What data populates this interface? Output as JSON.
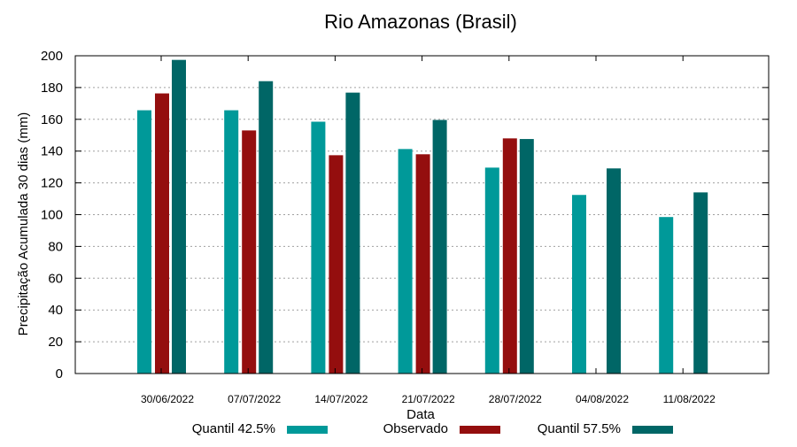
{
  "chart_data": {
    "type": "bar",
    "title": "Rio Amazonas (Brasil)",
    "xlabel": "Data",
    "ylabel": "Precipitação Acumulada 30 dias (mm)",
    "ylim": [
      0,
      200
    ],
    "yticks": [
      0,
      20,
      40,
      60,
      80,
      100,
      120,
      140,
      160,
      180,
      200
    ],
    "grid": true,
    "legend_position": "bottom",
    "categories": [
      "30/06/2022",
      "07/07/2022",
      "14/07/2022",
      "21/07/2022",
      "28/07/2022",
      "04/08/2022",
      "11/08/2022"
    ],
    "series": [
      {
        "name": "Quantil 42.5%",
        "color": "#009999",
        "values": [
          165.7,
          165.7,
          158.5,
          141.3,
          129.6,
          112.4,
          98.5
        ]
      },
      {
        "name": "Observado",
        "color": "#940E0E",
        "values": [
          176.3,
          153,
          137.4,
          138,
          148,
          null,
          null
        ]
      },
      {
        "name": "Quantil 57.5%",
        "color": "#006666",
        "values": [
          197.4,
          184,
          176.8,
          159.6,
          147.6,
          129.1,
          114
        ]
      }
    ]
  }
}
